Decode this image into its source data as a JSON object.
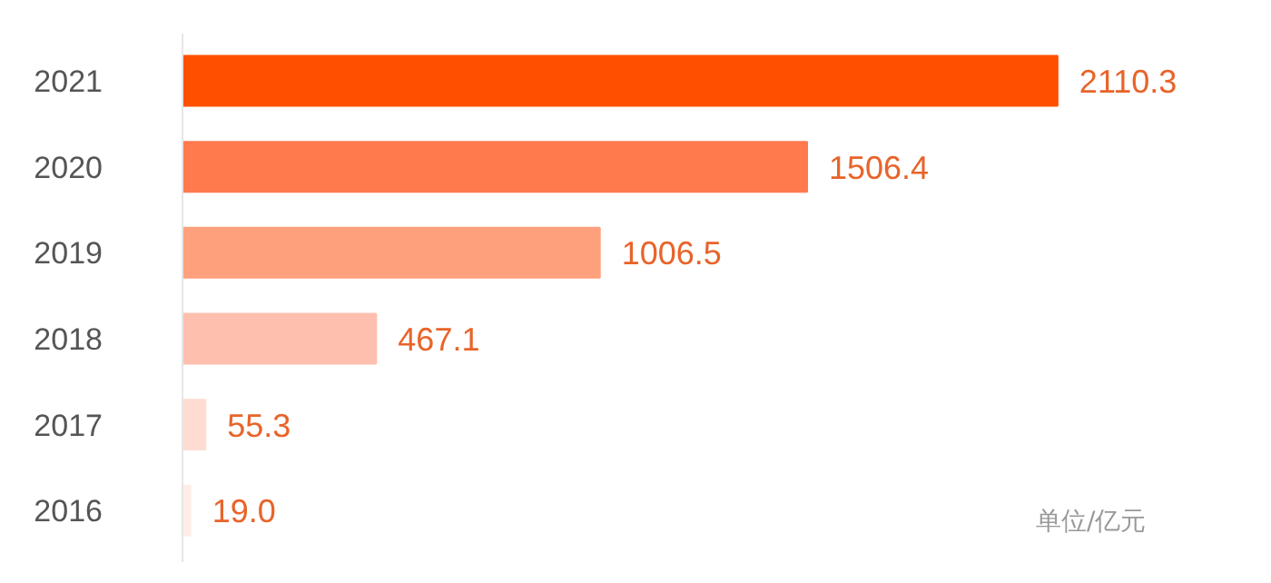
{
  "chart_data": {
    "type": "bar",
    "orientation": "horizontal",
    "categories": [
      "2021",
      "2020",
      "2019",
      "2018",
      "2017",
      "2016"
    ],
    "values": [
      2110.3,
      1506.4,
      1006.5,
      467.1,
      55.3,
      19.0
    ],
    "colors": [
      "#ff5000",
      "#ff7a4d",
      "#ffa07c",
      "#ffbfaf",
      "#ffdcd2",
      "#ffeee8"
    ],
    "value_labels": [
      "2110.3",
      "1506.4",
      "1006.5",
      "467.1",
      "55.3",
      "19.0"
    ],
    "grid": false,
    "annotations": [
      "单位/亿元"
    ]
  }
}
